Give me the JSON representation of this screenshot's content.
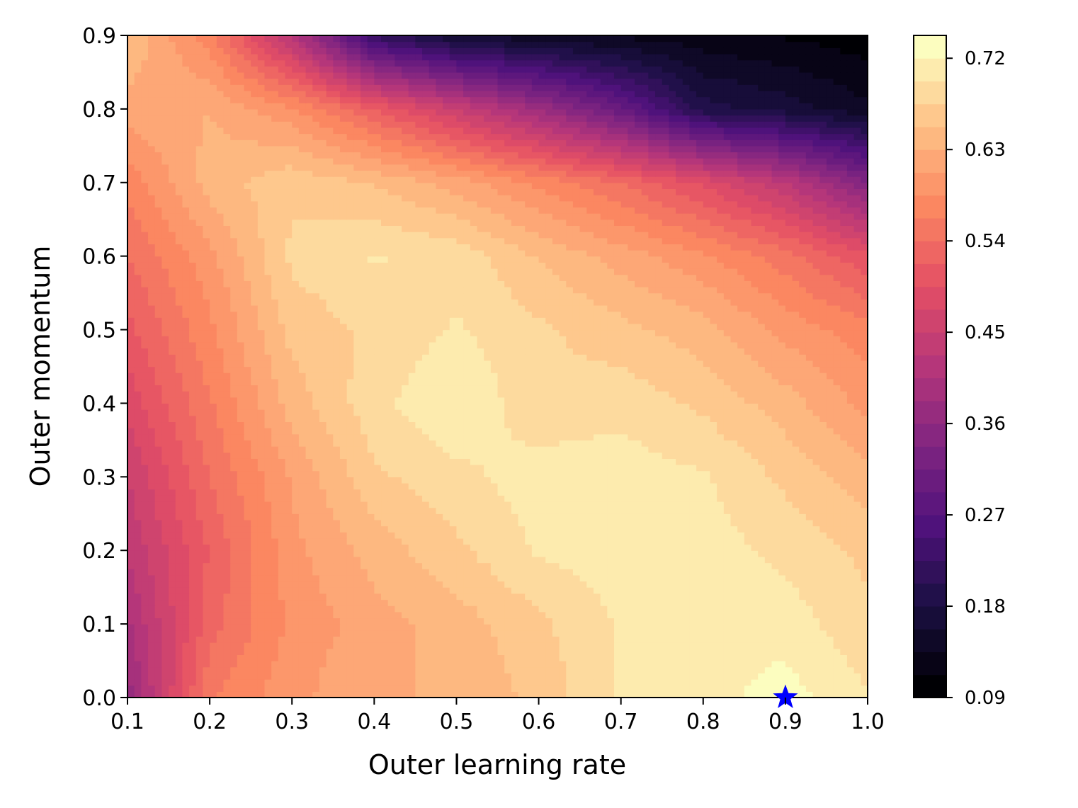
{
  "chart_data": {
    "type": "heatmap",
    "subtype": "filled-contour",
    "colormap": "magma",
    "xlabel": "Outer learning rate",
    "ylabel": "Outer momentum",
    "xlim": [
      0.1,
      1.0
    ],
    "ylim": [
      0.0,
      0.9
    ],
    "x": [
      0.1,
      0.2,
      0.3,
      0.4,
      0.5,
      0.6,
      0.7,
      0.8,
      0.9,
      1.0
    ],
    "y": [
      0.0,
      0.1,
      0.2,
      0.3,
      0.4,
      0.5,
      0.6,
      0.7,
      0.8,
      0.9
    ],
    "xticks": [
      "0.1",
      "0.2",
      "0.3",
      "0.4",
      "0.5",
      "0.6",
      "0.7",
      "0.8",
      "0.9",
      "1.0"
    ],
    "yticks": [
      "0.0",
      "0.1",
      "0.2",
      "0.3",
      "0.4",
      "0.5",
      "0.6",
      "0.7",
      "0.8",
      "0.9"
    ],
    "z": [
      [
        0.37,
        0.56,
        0.6,
        0.63,
        0.63,
        0.66,
        0.7,
        0.71,
        0.73,
        0.7
      ],
      [
        0.4,
        0.53,
        0.59,
        0.62,
        0.64,
        0.67,
        0.7,
        0.72,
        0.71,
        0.68
      ],
      [
        0.43,
        0.52,
        0.6,
        0.64,
        0.67,
        0.7,
        0.71,
        0.71,
        0.69,
        0.67
      ],
      [
        0.45,
        0.54,
        0.61,
        0.67,
        0.69,
        0.71,
        0.71,
        0.7,
        0.67,
        0.64
      ],
      [
        0.48,
        0.56,
        0.64,
        0.69,
        0.72,
        0.68,
        0.69,
        0.67,
        0.64,
        0.6
      ],
      [
        0.51,
        0.58,
        0.66,
        0.68,
        0.7,
        0.68,
        0.66,
        0.64,
        0.6,
        0.57
      ],
      [
        0.54,
        0.6,
        0.68,
        0.7,
        0.69,
        0.65,
        0.62,
        0.59,
        0.55,
        0.5
      ],
      [
        0.57,
        0.64,
        0.67,
        0.65,
        0.62,
        0.58,
        0.54,
        0.49,
        0.43,
        0.34
      ],
      [
        0.62,
        0.63,
        0.59,
        0.52,
        0.45,
        0.38,
        0.3,
        0.19,
        0.17,
        0.14
      ],
      [
        0.65,
        0.57,
        0.42,
        0.22,
        0.16,
        0.14,
        0.13,
        0.12,
        0.11,
        0.1
      ]
    ],
    "levels": [
      0.09,
      0.1125,
      0.135,
      0.1575,
      0.18,
      0.2025,
      0.225,
      0.2475,
      0.27,
      0.2925,
      0.315,
      0.3375,
      0.36,
      0.3825,
      0.405,
      0.4275,
      0.45,
      0.4725,
      0.495,
      0.5175,
      0.54,
      0.5625,
      0.585,
      0.6075,
      0.63,
      0.6525,
      0.675,
      0.6975,
      0.72,
      0.7425
    ],
    "colorbar": {
      "ticks": [
        "0.09",
        "0.18",
        "0.27",
        "0.36",
        "0.45",
        "0.54",
        "0.63",
        "0.72"
      ],
      "range": [
        0.09,
        0.7425
      ]
    },
    "marker": {
      "symbol": "star",
      "x": 0.9,
      "y": 0.0,
      "color": "#0000ff"
    },
    "grid": false
  }
}
